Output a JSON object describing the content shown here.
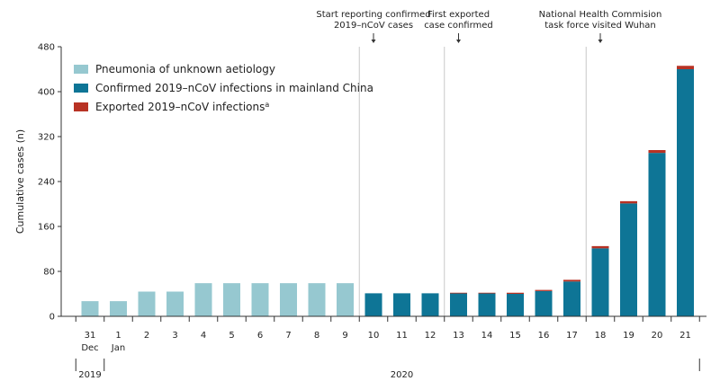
{
  "chart_data": {
    "type": "bar",
    "stacked": true,
    "ylabel": "Cumulative cases (n)",
    "xlabel": "",
    "ylim": [
      0,
      480
    ],
    "yticks": [
      0,
      80,
      160,
      240,
      320,
      400,
      480
    ],
    "grid": false,
    "legend_position": "top-left",
    "categories": [
      {
        "day": "31",
        "sub": "Dec"
      },
      {
        "day": "1",
        "sub": "Jan"
      },
      {
        "day": "2",
        "sub": ""
      },
      {
        "day": "3",
        "sub": ""
      },
      {
        "day": "4",
        "sub": ""
      },
      {
        "day": "5",
        "sub": ""
      },
      {
        "day": "6",
        "sub": ""
      },
      {
        "day": "7",
        "sub": ""
      },
      {
        "day": "8",
        "sub": ""
      },
      {
        "day": "9",
        "sub": ""
      },
      {
        "day": "10",
        "sub": ""
      },
      {
        "day": "11",
        "sub": ""
      },
      {
        "day": "12",
        "sub": ""
      },
      {
        "day": "13",
        "sub": ""
      },
      {
        "day": "14",
        "sub": ""
      },
      {
        "day": "15",
        "sub": ""
      },
      {
        "day": "16",
        "sub": ""
      },
      {
        "day": "17",
        "sub": ""
      },
      {
        "day": "18",
        "sub": ""
      },
      {
        "day": "19",
        "sub": ""
      },
      {
        "day": "20",
        "sub": ""
      },
      {
        "day": "21",
        "sub": ""
      }
    ],
    "series": [
      {
        "name": "Pneumonia of unknown aetiology",
        "color": "#96c8d0",
        "values": [
          27,
          27,
          44,
          44,
          59,
          59,
          59,
          59,
          59,
          59,
          0,
          0,
          0,
          0,
          0,
          0,
          0,
          0,
          0,
          0,
          0,
          0
        ]
      },
      {
        "name": "Confirmed 2019–nCoV infections in mainland China",
        "color": "#0e7596",
        "values": [
          0,
          0,
          0,
          0,
          0,
          0,
          0,
          0,
          0,
          0,
          41,
          41,
          41,
          41,
          41,
          40,
          45,
          62,
          121,
          201,
          291,
          440
        ]
      },
      {
        "name": "Exported 2019–nCoV infections",
        "legend_superscript": "a",
        "color": "#b83224",
        "values": [
          0,
          0,
          0,
          0,
          0,
          0,
          0,
          0,
          0,
          0,
          0,
          0,
          0,
          1,
          1,
          2,
          2,
          3,
          4,
          4,
          5,
          6
        ]
      }
    ],
    "years": [
      {
        "label": "2019",
        "from_index": 0,
        "to_index": 0
      },
      {
        "label": "2020",
        "from_index": 1,
        "to_index": 21
      }
    ],
    "annotations": [
      {
        "lines": [
          "Start reporting confirmed",
          "2019–nCoV cases"
        ],
        "index": 10
      },
      {
        "lines": [
          "First exported",
          "case confirmed"
        ],
        "index": 13
      },
      {
        "lines": [
          "National Health Commision",
          "task force visited Wuhan"
        ],
        "index": 18
      }
    ]
  }
}
